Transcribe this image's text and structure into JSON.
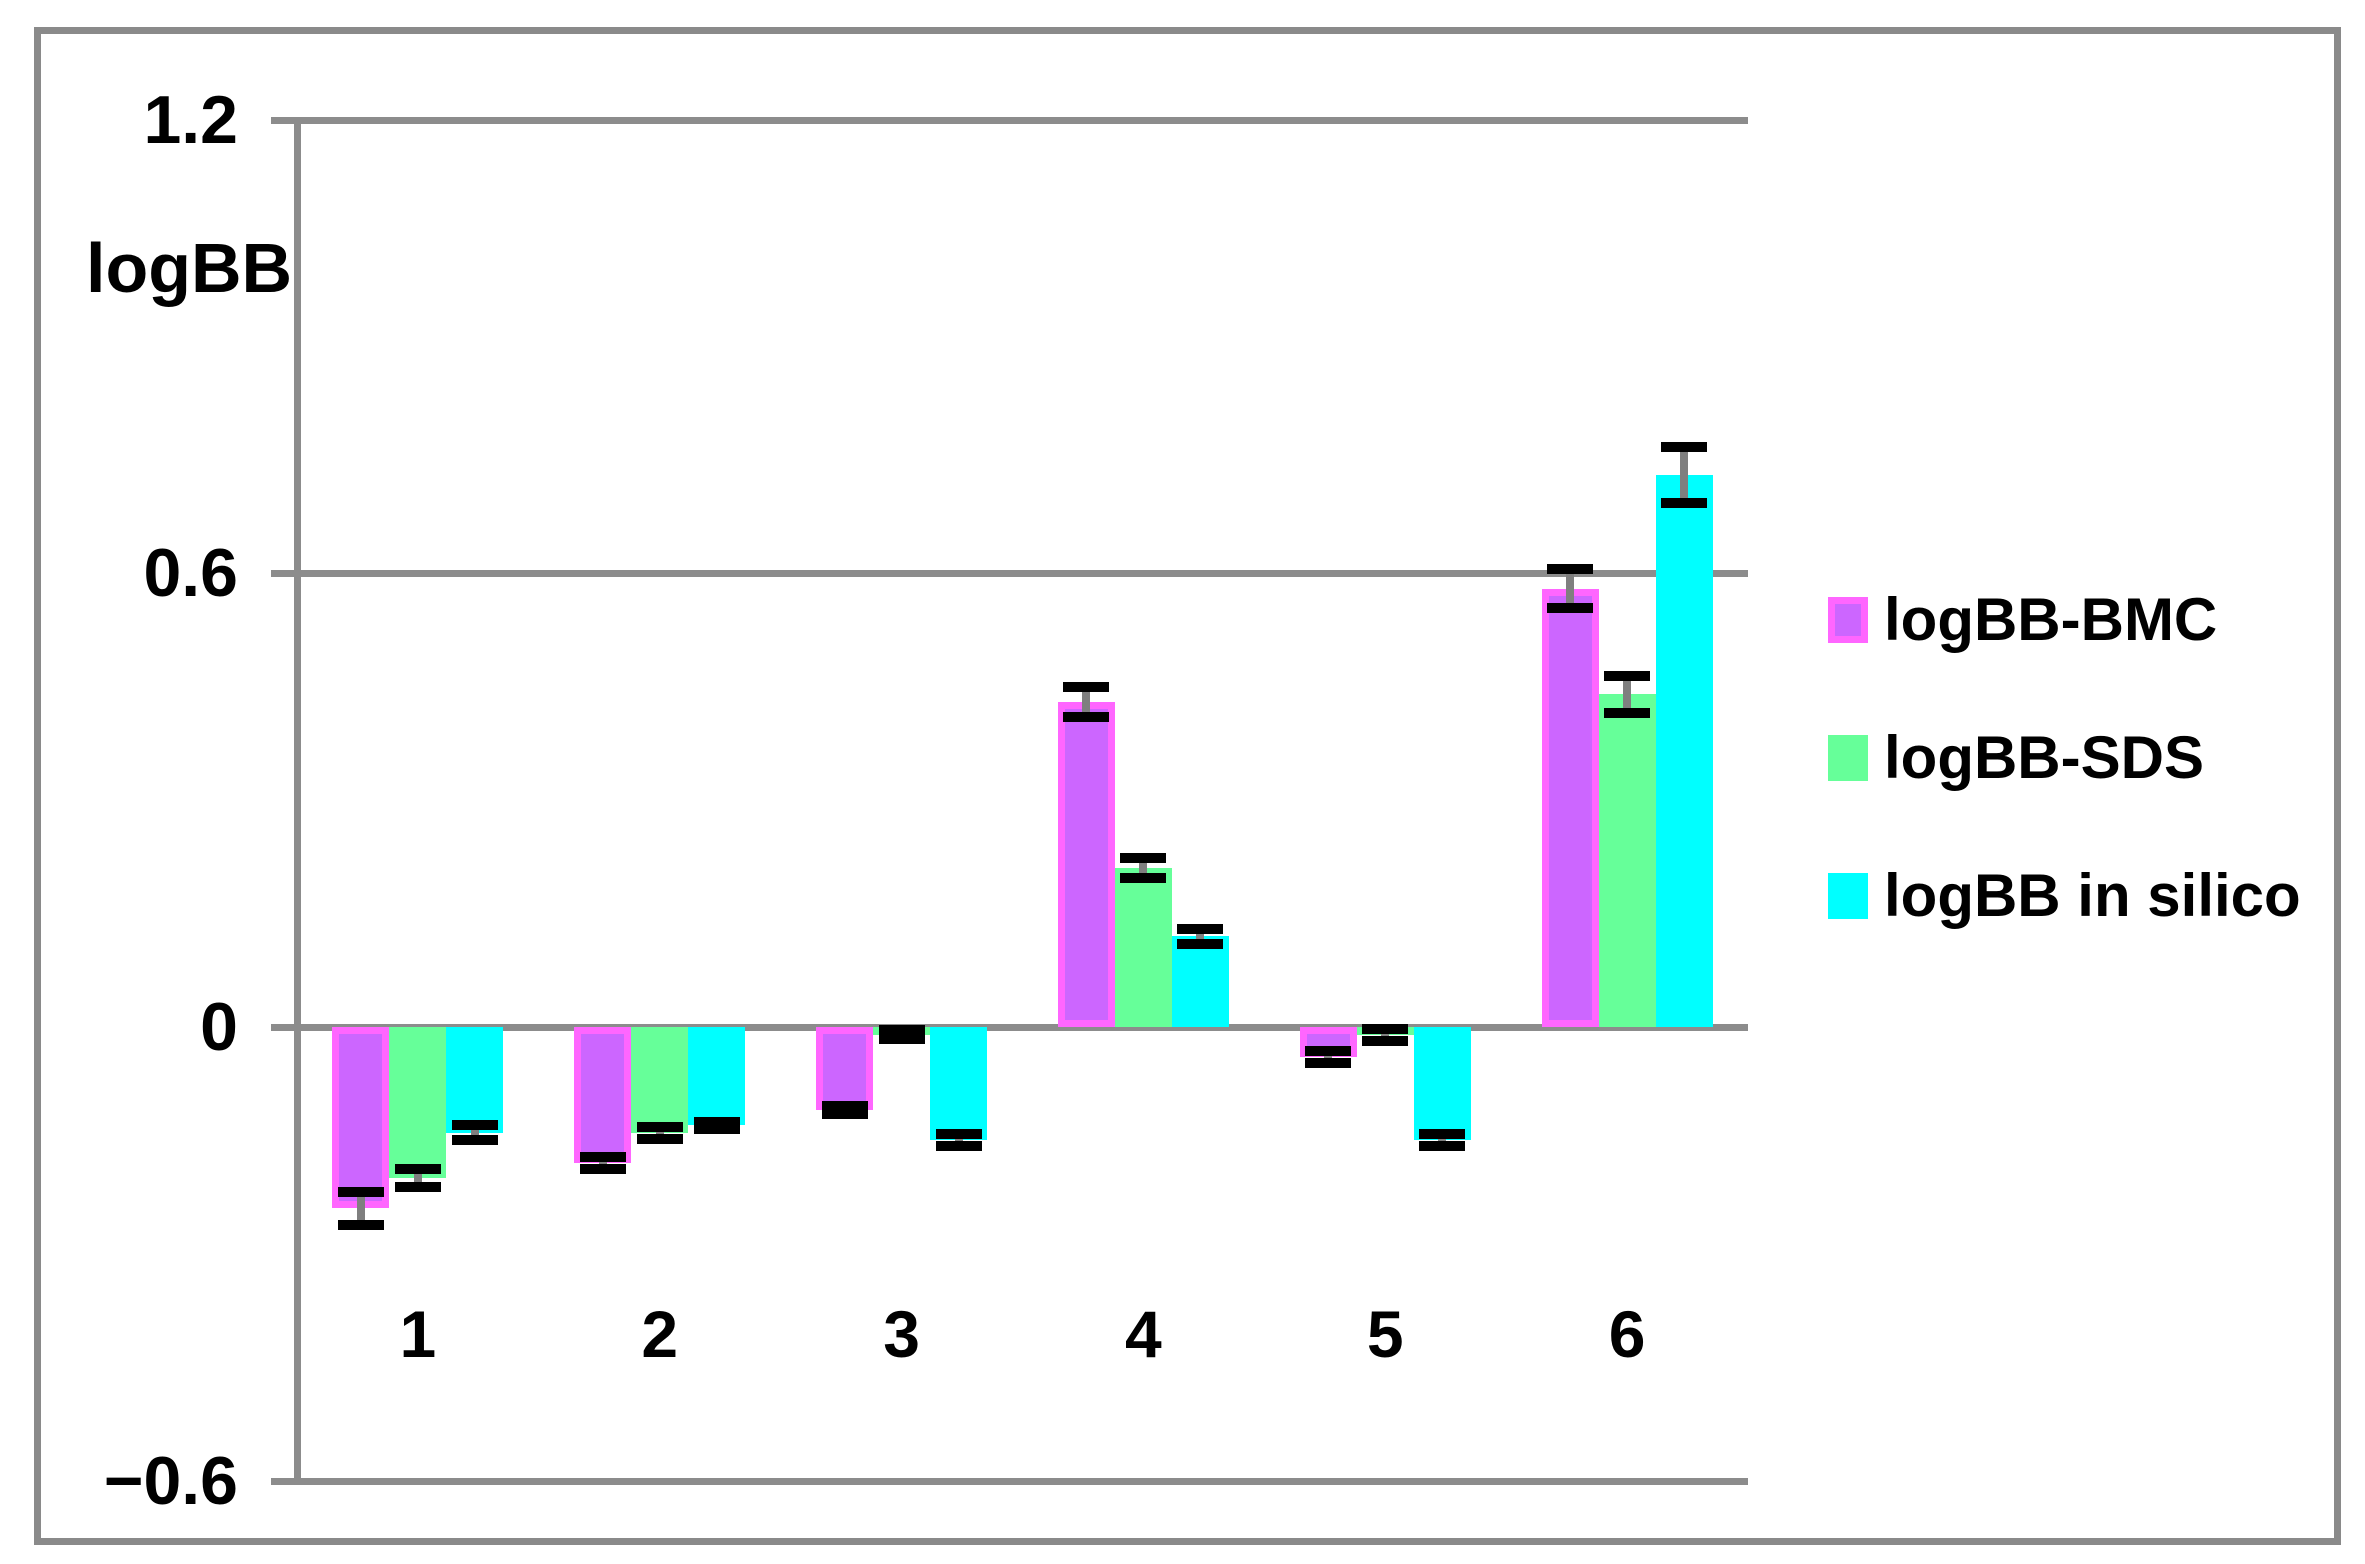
{
  "figure": {
    "background": "#ffffff",
    "border_color": "#8a8a8a"
  },
  "chart_data": {
    "type": "bar",
    "title": "",
    "xlabel": "",
    "ylabel": "logBB",
    "categories": [
      "1",
      "2",
      "3",
      "4",
      "5",
      "6"
    ],
    "ylim": [
      -0.6,
      1.2
    ],
    "y_ticks": [
      {
        "label": "1.2",
        "value": 1.2
      },
      {
        "label": "0.6",
        "value": 0.6
      },
      {
        "label": "0",
        "value": 0
      },
      {
        "label": "−0.6",
        "value": -0.6
      }
    ],
    "grid": "horizontal",
    "gridline_color": "#8c8c8c",
    "error_bars": true,
    "error_bar_cap_color": "#000000",
    "error_bar_line_color": "#7f7f7f",
    "legend_position": "right",
    "series": [
      {
        "name": "logBB-BMC",
        "fill_color": "#cc66ff",
        "border_color": "#ff66ff",
        "values": [
          -0.24,
          -0.18,
          -0.11,
          0.43,
          -0.04,
          0.58
        ],
        "errors": [
          0.022,
          0.008,
          0.005,
          0.02,
          0.008,
          0.026
        ]
      },
      {
        "name": "logBB-SDS",
        "fill_color": "#66ff99",
        "border_color": "#66ff99",
        "values": [
          -0.2,
          -0.14,
          -0.01,
          0.21,
          -0.01,
          0.44
        ],
        "errors": [
          0.012,
          0.008,
          0.006,
          0.013,
          0.008,
          0.024
        ]
      },
      {
        "name": "logBB in silico",
        "fill_color": "#00ffff",
        "border_color": "#00ffff",
        "values": [
          -0.14,
          -0.13,
          -0.15,
          0.12,
          -0.15,
          0.73
        ],
        "errors": [
          0.01,
          0.005,
          0.008,
          0.01,
          0.008,
          0.037
        ]
      }
    ]
  }
}
